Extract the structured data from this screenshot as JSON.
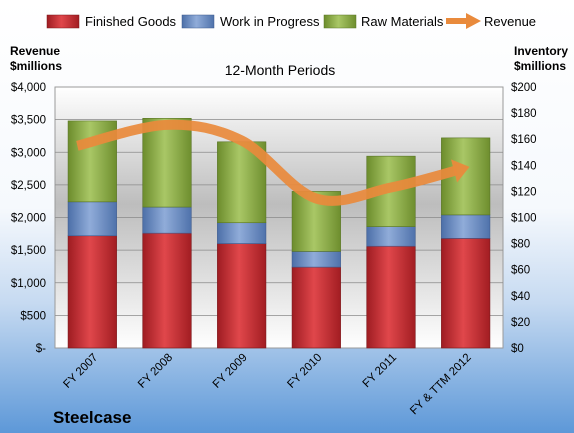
{
  "chart_data": {
    "type": "bar",
    "subtitle": "12-Month Periods",
    "company": "Steelcase",
    "y_left_label_line1": "Revenue",
    "y_left_label_line2": "$millions",
    "y_right_label_line1": "Inventory",
    "y_right_label_line2": "$millions",
    "categories": [
      "FY 2007",
      "FY 2008",
      "FY 2009",
      "FY 2010",
      "FY 2011",
      "FY & TTM 2012"
    ],
    "y_left_ticks": [
      "$-",
      "$500",
      "$1,000",
      "$1,500",
      "$2,000",
      "$2,500",
      "$3,000",
      "$3,500",
      "$4,000"
    ],
    "y_right_ticks": [
      "$0",
      "$20",
      "$40",
      "$60",
      "$80",
      "$100",
      "$120",
      "$140",
      "$160",
      "$180",
      "$200"
    ],
    "ylim_left": [
      0,
      4000
    ],
    "ylim_right": [
      0,
      200
    ],
    "stack_series": [
      {
        "name": "Finished Goods",
        "color": "#c0282d",
        "values": [
          86,
          88,
          80,
          62,
          78,
          84
        ]
      },
      {
        "name": "Work in Progress",
        "color": "#6a8cc4",
        "values": [
          26,
          20,
          16,
          12,
          15,
          18
        ]
      },
      {
        "name": "Raw Materials",
        "color": "#8dae4a",
        "values": [
          62,
          68,
          62,
          46,
          54,
          59
        ]
      }
    ],
    "line_series": {
      "name": "Revenue",
      "color": "#e98a3c",
      "axis": "left",
      "values": [
        3100,
        3420,
        3180,
        2290,
        2460,
        2760
      ]
    },
    "grid": true,
    "legend_position": "top"
  }
}
